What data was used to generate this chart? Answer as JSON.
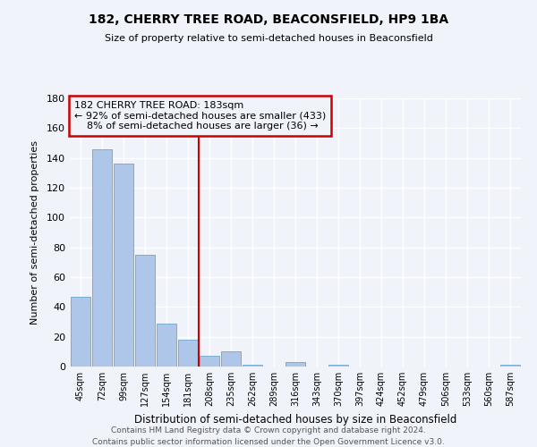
{
  "title1": "182, CHERRY TREE ROAD, BEACONSFIELD, HP9 1BA",
  "title2": "Size of property relative to semi-detached houses in Beaconsfield",
  "xlabel": "Distribution of semi-detached houses by size in Beaconsfield",
  "ylabel": "Number of semi-detached properties",
  "bar_labels": [
    "45sqm",
    "72sqm",
    "99sqm",
    "127sqm",
    "154sqm",
    "181sqm",
    "208sqm",
    "235sqm",
    "262sqm",
    "289sqm",
    "316sqm",
    "343sqm",
    "370sqm",
    "397sqm",
    "424sqm",
    "452sqm",
    "479sqm",
    "506sqm",
    "533sqm",
    "560sqm",
    "587sqm"
  ],
  "bar_values": [
    47,
    146,
    136,
    75,
    29,
    18,
    7,
    10,
    1,
    0,
    3,
    0,
    1,
    0,
    0,
    0,
    0,
    0,
    0,
    0,
    1
  ],
  "bar_color": "#aec6e8",
  "bar_edgecolor": "#7aacd4",
  "vline_x_index": 5.5,
  "annotation_text": "182 CHERRY TREE ROAD: 183sqm\n← 92% of semi-detached houses are smaller (433)\n    8% of semi-detached houses are larger (36) →",
  "vline_color": "#cc0000",
  "box_edgecolor": "#cc0000",
  "ylim": [
    0,
    180
  ],
  "yticks": [
    0,
    20,
    40,
    60,
    80,
    100,
    120,
    140,
    160,
    180
  ],
  "footer1": "Contains HM Land Registry data © Crown copyright and database right 2024.",
  "footer2": "Contains public sector information licensed under the Open Government Licence v3.0.",
  "bg_color": "#f0f4fa",
  "grid_color": "#ffffff"
}
